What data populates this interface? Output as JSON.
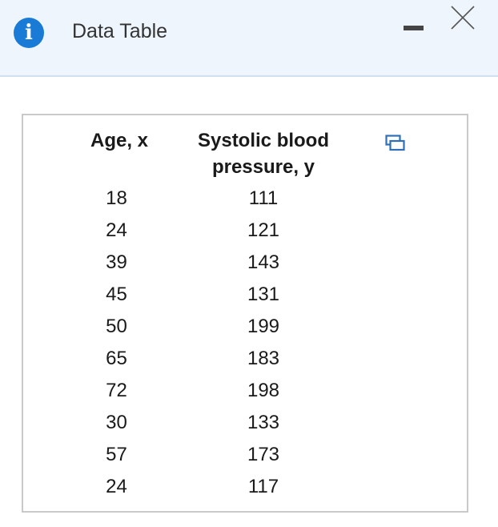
{
  "window": {
    "title": "Data Table",
    "info_icon_glyph": "i",
    "info_icon": "info-icon",
    "minimize_icon": "minimize-icon",
    "close_icon": "close-icon",
    "accent_color": "#1a7bd6",
    "titlebar_bg": "#eef5fc"
  },
  "table": {
    "headers": [
      "Age, x",
      "Systolic blood pressure, y"
    ],
    "copy_icon": "copy-icon",
    "rows": [
      [
        "18",
        "111"
      ],
      [
        "24",
        "121"
      ],
      [
        "39",
        "143"
      ],
      [
        "45",
        "131"
      ],
      [
        "50",
        "199"
      ],
      [
        "65",
        "183"
      ],
      [
        "72",
        "198"
      ],
      [
        "30",
        "133"
      ],
      [
        "57",
        "173"
      ],
      [
        "24",
        "117"
      ]
    ]
  }
}
